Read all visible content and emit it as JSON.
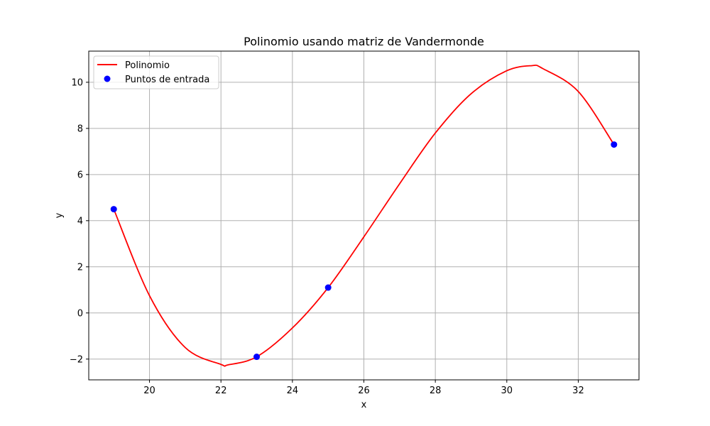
{
  "chart_data": {
    "type": "line",
    "title": "Polinomio usando matriz de Vandermonde",
    "xlabel": "x",
    "ylabel": "y",
    "xlim": [
      18.3,
      33.7
    ],
    "ylim": [
      -2.9,
      11.35
    ],
    "xticks": [
      20,
      22,
      24,
      26,
      28,
      30,
      32
    ],
    "yticks": [
      -2,
      0,
      2,
      4,
      6,
      8,
      10
    ],
    "xtick_labels": [
      "20",
      "22",
      "24",
      "26",
      "28",
      "30",
      "32"
    ],
    "ytick_labels": [
      "−2",
      "0",
      "2",
      "4",
      "6",
      "8",
      "10"
    ],
    "grid": true,
    "legend_position": "top-left",
    "series": [
      {
        "name": "Polinomio",
        "kind": "line",
        "color": "#ff0000",
        "x": [
          19,
          20,
          21,
          22,
          22.2,
          23,
          24,
          25,
          26,
          27,
          28,
          29,
          30,
          30.7,
          31,
          32,
          33
        ],
        "y": [
          4.5,
          0.75,
          -1.5,
          -2.23,
          -2.25,
          -1.9,
          -0.65,
          1.1,
          3.3,
          5.6,
          7.8,
          9.5,
          10.5,
          10.72,
          10.6,
          9.6,
          7.3
        ]
      },
      {
        "name": "Puntos de entrada",
        "kind": "scatter",
        "color": "#0000ff",
        "x": [
          19,
          23,
          25,
          33
        ],
        "y": [
          4.5,
          -1.9,
          1.1,
          7.3
        ]
      }
    ]
  }
}
